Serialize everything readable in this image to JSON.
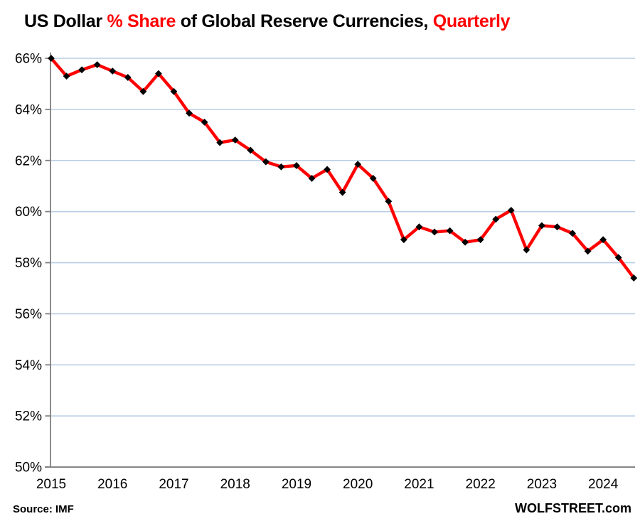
{
  "title": {
    "segments": [
      {
        "text": "US Dollar ",
        "color": "#000000"
      },
      {
        "text": "% Share",
        "color": "#fe0000"
      },
      {
        "text": " of Global Reserve Currencies, ",
        "color": "#000000"
      },
      {
        "text": "Quarterly",
        "color": "#fe0000"
      }
    ],
    "full_text": "US Dollar % Share of Global Reserve Currencies, Quarterly"
  },
  "footer": {
    "source": "Source: IMF",
    "brand": "WOLFSTREET.com"
  },
  "colors": {
    "line": "#fe0000",
    "marker": "#000000",
    "gridline": "#b9cde4",
    "axis": "#7f7f7f",
    "text": "#000000",
    "background": "#ffffff",
    "title_accent": "#fe0000"
  },
  "chart_data": {
    "type": "line",
    "title": "US Dollar % Share of Global Reserve Currencies, Quarterly",
    "xlabel": "",
    "ylabel": "",
    "source": "IMF",
    "grid": "horizontal-only",
    "legend": "none",
    "marker": "diamond",
    "x": [
      "2015 Q1",
      "2015 Q2",
      "2015 Q3",
      "2015 Q4",
      "2016 Q1",
      "2016 Q2",
      "2016 Q3",
      "2016 Q4",
      "2017 Q1",
      "2017 Q2",
      "2017 Q3",
      "2017 Q4",
      "2018 Q1",
      "2018 Q2",
      "2018 Q3",
      "2018 Q4",
      "2019 Q1",
      "2019 Q2",
      "2019 Q3",
      "2019 Q4",
      "2020 Q1",
      "2020 Q2",
      "2020 Q3",
      "2020 Q4",
      "2021 Q1",
      "2021 Q2",
      "2021 Q3",
      "2021 Q4",
      "2022 Q1",
      "2022 Q2",
      "2022 Q3",
      "2022 Q4",
      "2023 Q1",
      "2023 Q2",
      "2023 Q3",
      "2023 Q4",
      "2024 Q1",
      "2024 Q2",
      "2024 Q3"
    ],
    "values": [
      66.0,
      65.3,
      65.55,
      65.75,
      65.5,
      65.25,
      64.7,
      65.4,
      64.7,
      63.85,
      63.5,
      62.7,
      62.8,
      62.4,
      61.95,
      61.75,
      61.8,
      61.3,
      61.65,
      60.75,
      61.85,
      61.3,
      60.4,
      58.9,
      59.4,
      59.2,
      59.25,
      58.8,
      58.9,
      59.7,
      60.05,
      58.5,
      59.45,
      59.4,
      59.15,
      58.45,
      58.9,
      58.2,
      57.4
    ],
    "x_axis": {
      "tick_labels": [
        "2015",
        "2016",
        "2017",
        "2018",
        "2019",
        "2020",
        "2021",
        "2022",
        "2023",
        "2024"
      ],
      "ticks_at_quarter_index": [
        0,
        4,
        8,
        12,
        16,
        20,
        24,
        28,
        32,
        36
      ]
    },
    "y_axis": {
      "min": 50,
      "max": 66,
      "step": 2,
      "tick_labels": [
        "66%",
        "64%",
        "62%",
        "60%",
        "58%",
        "56%",
        "54%",
        "52%",
        "50%"
      ],
      "unit": "%"
    }
  }
}
